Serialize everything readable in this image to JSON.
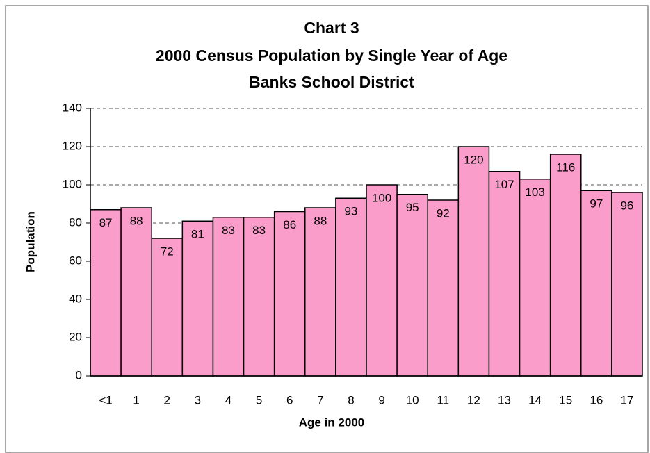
{
  "chart_data": {
    "type": "bar",
    "title": [
      "Chart 3",
      "2000 Census Population by Single Year of Age",
      "Banks School District"
    ],
    "x_label": "Age in 2000",
    "y_label": "Population",
    "categories": [
      "<1",
      "1",
      "2",
      "3",
      "4",
      "5",
      "6",
      "7",
      "8",
      "9",
      "10",
      "11",
      "12",
      "13",
      "14",
      "15",
      "16",
      "17"
    ],
    "values": [
      87,
      88,
      72,
      81,
      83,
      83,
      86,
      88,
      93,
      100,
      95,
      92,
      120,
      107,
      103,
      116,
      97,
      96
    ],
    "color": "#fa9dcb",
    "ylim": [
      0,
      140
    ],
    "yticks": [
      0,
      20,
      40,
      60,
      80,
      100,
      120,
      140
    ],
    "grid": true
  }
}
